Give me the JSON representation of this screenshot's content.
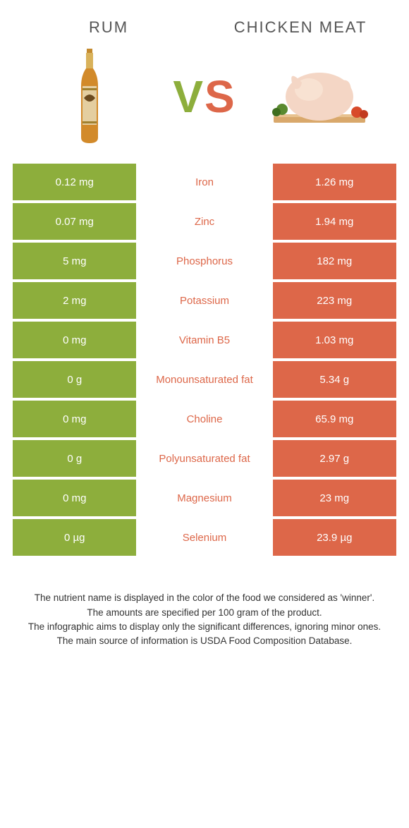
{
  "items": {
    "left": {
      "title": "RUM"
    },
    "right": {
      "title": "CHICKEN MEAT"
    }
  },
  "vs": {
    "v": "V",
    "s": "S"
  },
  "colors": {
    "left": "#8dae3c",
    "right": "#dd6749",
    "mid_bg": "#ffffff"
  },
  "rows": [
    {
      "left": "0.12 mg",
      "label": "Iron",
      "right": "1.26 mg",
      "winner": "right"
    },
    {
      "left": "0.07 mg",
      "label": "Zinc",
      "right": "1.94 mg",
      "winner": "right"
    },
    {
      "left": "5 mg",
      "label": "Phosphorus",
      "right": "182 mg",
      "winner": "right"
    },
    {
      "left": "2 mg",
      "label": "Potassium",
      "right": "223 mg",
      "winner": "right"
    },
    {
      "left": "0 mg",
      "label": "Vitamin B5",
      "right": "1.03 mg",
      "winner": "right"
    },
    {
      "left": "0 g",
      "label": "Monounsaturated fat",
      "right": "5.34 g",
      "winner": "right"
    },
    {
      "left": "0 mg",
      "label": "Choline",
      "right": "65.9 mg",
      "winner": "right"
    },
    {
      "left": "0 g",
      "label": "Polyunsaturated fat",
      "right": "2.97 g",
      "winner": "right"
    },
    {
      "left": "0 mg",
      "label": "Magnesium",
      "right": "23 mg",
      "winner": "right"
    },
    {
      "left": "0 µg",
      "label": "Selenium",
      "right": "23.9 µg",
      "winner": "right"
    }
  ],
  "footer": {
    "l1": "The nutrient name is displayed in the color of the food we considered as 'winner'.",
    "l2": "The amounts are specified per 100 gram of the product.",
    "l3": "The infographic aims to display only the significant differences, ignoring minor ones.",
    "l4": "The main source of information is USDA Food Composition Database."
  }
}
